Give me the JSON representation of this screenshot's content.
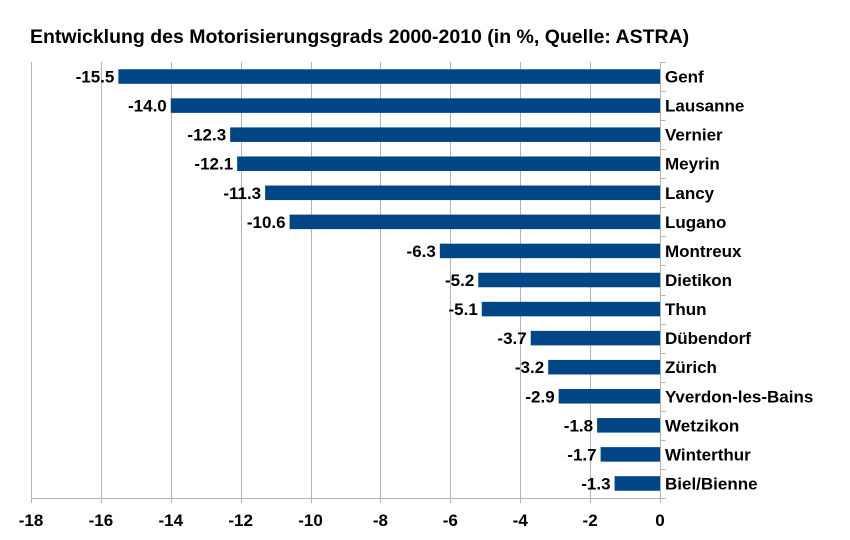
{
  "chart_data": {
    "type": "bar",
    "orientation": "horizontal",
    "title": "Entwicklung des Motorisierungsgrads 2000-2010 (in %, Quelle: ASTRA)",
    "xlabel": "",
    "ylabel": "",
    "xlim": [
      -18,
      0
    ],
    "xticks": [
      -18,
      -16,
      -14,
      -12,
      -10,
      -8,
      -6,
      -4,
      -2,
      0
    ],
    "grid": true,
    "bar_color": "#004586",
    "categories": [
      "Genf",
      "Lausanne",
      "Vernier",
      "Meyrin",
      "Lancy",
      "Lugano",
      "Montreux",
      "Dietikon",
      "Thun",
      "Dübendorf",
      "Zürich",
      "Yverdon-les-Bains",
      "Wetzikon",
      "Winterthur",
      "Biel/Bienne"
    ],
    "values": [
      -15.5,
      -14.0,
      -12.3,
      -12.1,
      -11.3,
      -10.6,
      -6.3,
      -5.2,
      -5.1,
      -3.7,
      -3.2,
      -2.9,
      -1.8,
      -1.7,
      -1.3
    ],
    "value_labels": [
      "-15.5",
      "-14.0",
      "-12.3",
      "-12.1",
      "-11.3",
      "-10.6",
      "-6.3",
      "-5.2",
      "-5.1",
      "-3.7",
      "-3.2",
      "-2.9",
      "-1.8",
      "-1.7",
      "-1.3"
    ]
  }
}
